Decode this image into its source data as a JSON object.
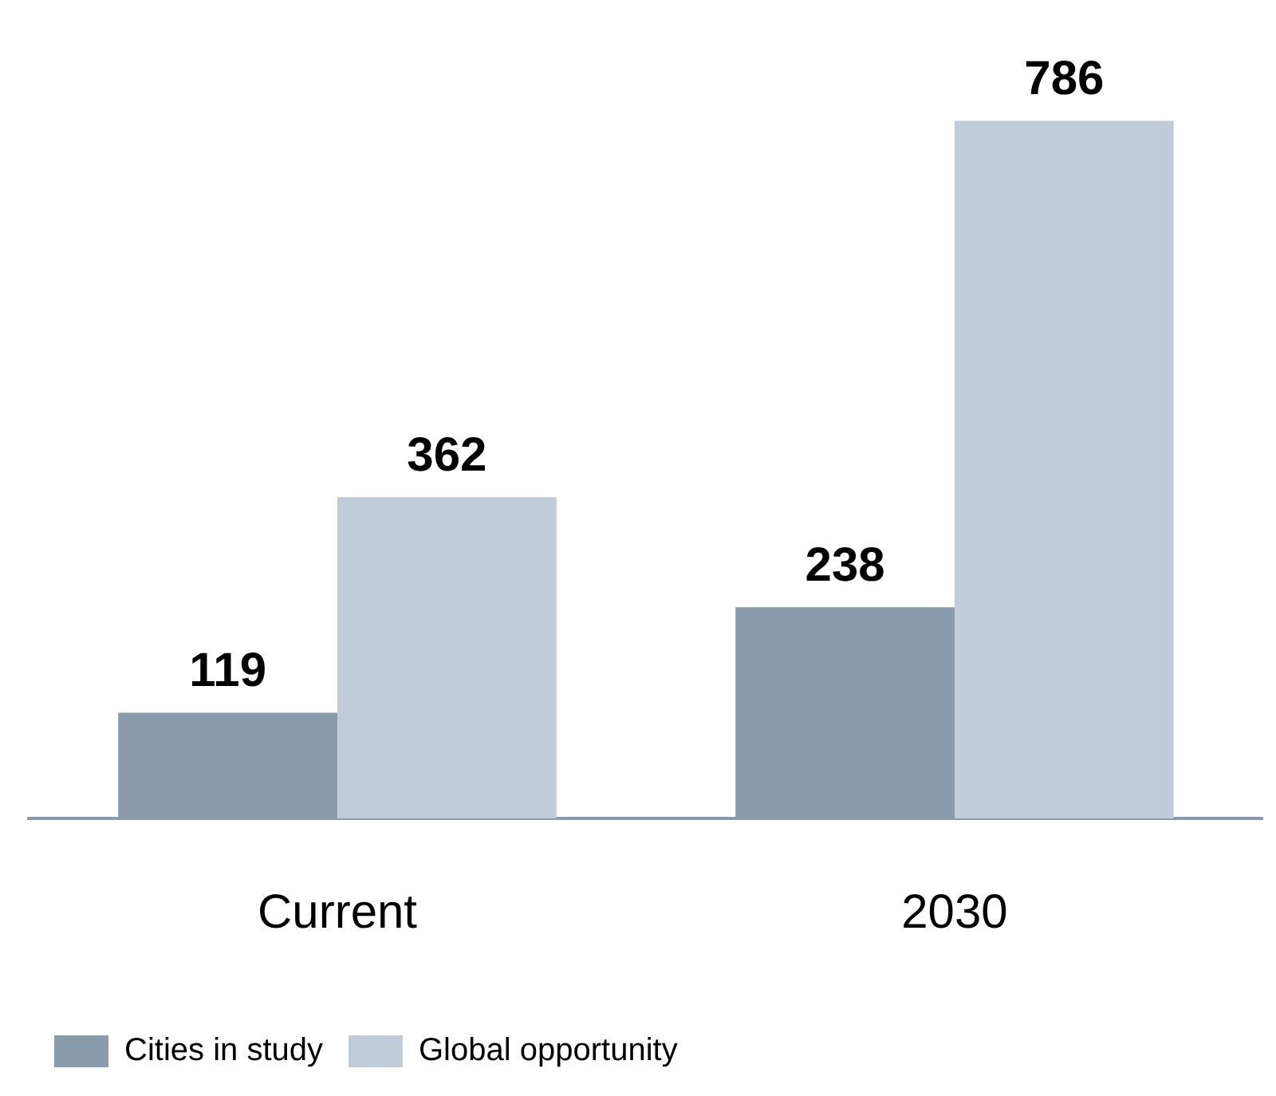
{
  "chart_data": {
    "type": "bar",
    "categories": [
      "Current",
      "2030"
    ],
    "series": [
      {
        "name": "Cities in study",
        "color": "#8a9cac",
        "values": [
          119,
          238
        ]
      },
      {
        "name": "Global opportunity",
        "color": "#c0cdd8",
        "values": [
          362,
          786
        ]
      }
    ],
    "data_labels": true,
    "legend": "bottom left",
    "grid": false
  }
}
